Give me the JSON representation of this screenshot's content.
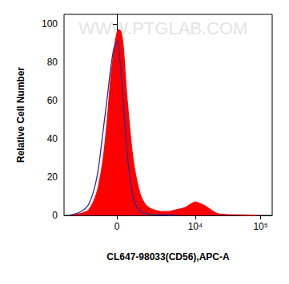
{
  "chart_data": {
    "type": "line",
    "x_label": "CL647-98033(CD56),APC-A",
    "y_label": "Relative Cell Number",
    "annotations": [
      "WWW.PTGLAB.COM"
    ],
    "xlim": [
      -4000,
      150000
    ],
    "xticks": [
      {
        "value": 0,
        "label": "0"
      },
      {
        "value": 10000,
        "label": "10⁴"
      },
      {
        "value": 100000,
        "label": "10⁵"
      }
    ],
    "ylim": [
      0,
      105
    ],
    "yticks": [
      0,
      20,
      40,
      60,
      80,
      100
    ],
    "series": [
      {
        "type": "area",
        "color": "#ff0000",
        "x": [
          -3340,
          -2090,
          -1470,
          -974,
          -635,
          -439,
          -290,
          -144,
          -36,
          72,
          180,
          290,
          402,
          556,
          758,
          974,
          1211,
          1472,
          1761,
          2086,
          2867,
          3878,
          5184,
          6912,
          8666,
          9984,
          12186,
          14042,
          17088,
          21414,
          28416,
          49792,
          87296
        ],
        "values": [
          0,
          1,
          3,
          12,
          30,
          50,
          70,
          85,
          93,
          97,
          96,
          88,
          70,
          50,
          30,
          18,
          10,
          6,
          4,
          3,
          2,
          2,
          3,
          4,
          6,
          7,
          6,
          5,
          3,
          1,
          0.5,
          0.2,
          0
        ]
      },
      {
        "type": "line",
        "color": "#2e2a96",
        "x": [
          -3340,
          -2090,
          -1470,
          -974,
          -635,
          -439,
          -290,
          -144,
          -36,
          36,
          144,
          254,
          402,
          556,
          758,
          974,
          1211,
          1472,
          2086,
          2867,
          5184
        ],
        "values": [
          0,
          2,
          6,
          20,
          45,
          62,
          76,
          87,
          90,
          91,
          80,
          65,
          42,
          24,
          10,
          4,
          2,
          1,
          0.5,
          0.2,
          0
        ]
      }
    ]
  }
}
